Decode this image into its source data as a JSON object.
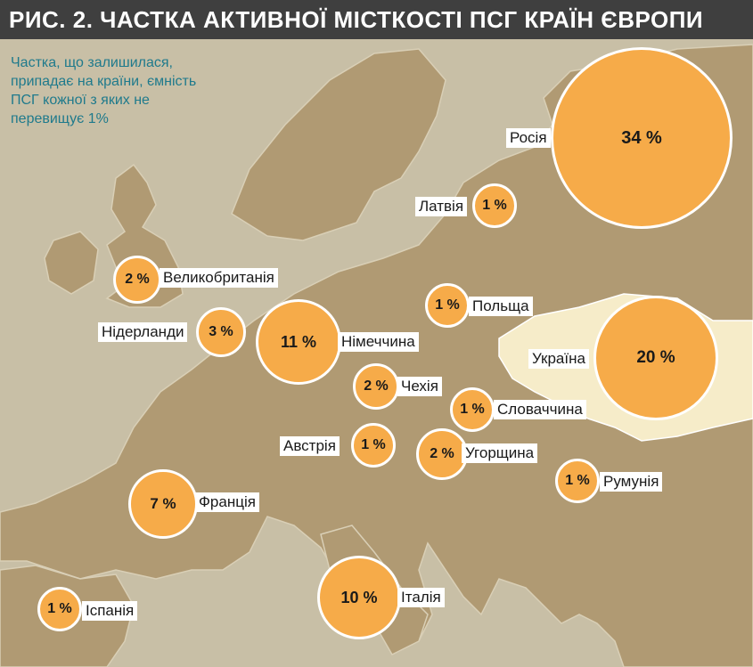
{
  "title": "РИС. 2. ЧАСТКА АКТИВНОЇ МІСТКОСТІ ПСГ КРАЇН ЄВРОПИ",
  "note": "Частка, що залишилася, припадає на країни, ємність ПСГ кожної з яких не перевищує 1%",
  "colors": {
    "bubble_fill": "#f6ab49",
    "bubble_border": "#ffffff",
    "land": "#b09a73",
    "sea": "#c8bfa6",
    "ukraine_highlight": "#f6ecc9",
    "title_bar": "#3f3f3f",
    "note_text": "#1f7a8c"
  },
  "countries": [
    {
      "id": "russia",
      "name": "Росія",
      "value": "34 %"
    },
    {
      "id": "ukraine",
      "name": "Україна",
      "value": "20 %"
    },
    {
      "id": "germany",
      "name": "Німеччина",
      "value": "11 %"
    },
    {
      "id": "italy",
      "name": "Італія",
      "value": "10 %"
    },
    {
      "id": "france",
      "name": "Франція",
      "value": "7 %"
    },
    {
      "id": "netherlands",
      "name": "Нідерланди",
      "value": "3 %"
    },
    {
      "id": "uk",
      "name": "Великобританія",
      "value": "2 %"
    },
    {
      "id": "czech",
      "name": "Чехія",
      "value": "2 %"
    },
    {
      "id": "hungary",
      "name": "Угорщина",
      "value": "2 %"
    },
    {
      "id": "latvia",
      "name": "Латвія",
      "value": "1 %"
    },
    {
      "id": "poland",
      "name": "Польща",
      "value": "1 %"
    },
    {
      "id": "slovakia",
      "name": "Словаччина",
      "value": "1 %"
    },
    {
      "id": "austria",
      "name": "Австрія",
      "value": "1 %"
    },
    {
      "id": "romania",
      "name": "Румунія",
      "value": "1 %"
    },
    {
      "id": "spain",
      "name": "Іспанія",
      "value": "1 %"
    }
  ]
}
